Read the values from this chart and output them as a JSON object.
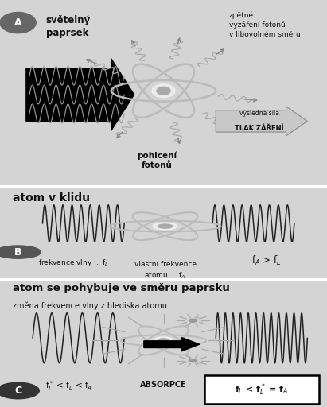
{
  "bg_A": "#d4d4d4",
  "bg_B": "#c8c8c8",
  "bg_C": "#d0d0d0",
  "dark": "#111111",
  "gray_wave": "#999999",
  "gray_dark_wave": "#333333",
  "gray_orbit": "#aaaaaa",
  "gray_nucleus": "#999999",
  "circle_color_AB": "#555555",
  "circle_color_C": "#333333",
  "arrow_fill": "#c8c8c8",
  "arrow_edge": "#888888",
  "section_A": "A",
  "section_B": "B",
  "section_C": "C",
  "title_B": "atom v klidu",
  "title_C1": "atom se pohybuje ve směru paprsku",
  "title_C2": "změna frekvence vlny z hlediska atomu",
  "text_svetelny": "světelný\npaprsek",
  "text_pohlceni": "pohlcení\nfotonů",
  "text_zpetne": "zpětné\nvyzáření fotonů\nv libovolném směru",
  "text_vysledna1": "výsledná síla",
  "text_vysledna2": "TLAK ZÁŘENÍ",
  "text_frekv_vlny": "frekvence vlny ... f$_L$",
  "text_vlastni1": "vlastní frekvence",
  "text_vlastni2": "atomu ... f$_A$",
  "text_fa_fl": "f$_A$ > f$_L$",
  "text_fl_star": "f$_L^*$ < f$_L$ < f$_A$",
  "text_absorpce": "ABSORPCE",
  "text_box": "f$_L$ < f$_L^*$ = f$_A$",
  "fig_w": 4.11,
  "fig_h": 5.12,
  "dpi": 100
}
